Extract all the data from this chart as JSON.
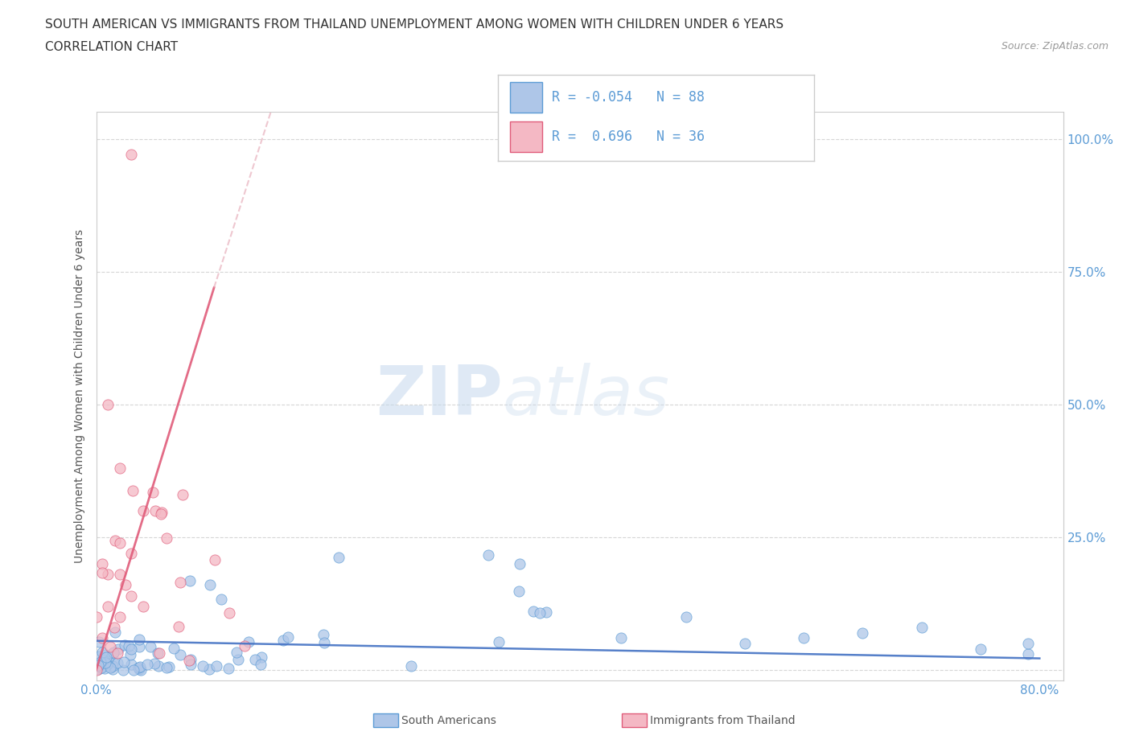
{
  "title_line1": "SOUTH AMERICAN VS IMMIGRANTS FROM THAILAND UNEMPLOYMENT AMONG WOMEN WITH CHILDREN UNDER 6 YEARS",
  "title_line2": "CORRELATION CHART",
  "source_text": "Source: ZipAtlas.com",
  "ylabel": "Unemployment Among Women with Children Under 6 years",
  "xlim": [
    0.0,
    0.82
  ],
  "ylim": [
    -0.02,
    1.05
  ],
  "yticks": [
    0.0,
    0.25,
    0.5,
    0.75,
    1.0
  ],
  "yticklabels_right": [
    "",
    "25.0%",
    "50.0%",
    "75.0%",
    "100.0%"
  ],
  "xticks": [
    0.0,
    0.1,
    0.2,
    0.3,
    0.4,
    0.5,
    0.6,
    0.7,
    0.8
  ],
  "xticklabels": [
    "0.0%",
    "",
    "",
    "",
    "",
    "",
    "",
    "",
    "80.0%"
  ],
  "south_american_color": "#aec6e8",
  "thailand_color": "#f4b8c4",
  "south_american_edge": "#5b9bd5",
  "thailand_edge": "#e05c7a",
  "trend_blue": "#4472c4",
  "trend_pink": "#e05c7a",
  "trend_pink_dashed": "#e8b0bc",
  "R_south": -0.054,
  "N_south": 88,
  "R_thailand": 0.696,
  "N_thailand": 36,
  "legend_label_south": "South Americans",
  "legend_label_thailand": "Immigrants from Thailand",
  "watermark_zip": "ZIP",
  "watermark_atlas": "atlas",
  "background_color": "#ffffff",
  "tick_color": "#5b9bd5",
  "label_color": "#555555",
  "grid_color": "#cccccc"
}
